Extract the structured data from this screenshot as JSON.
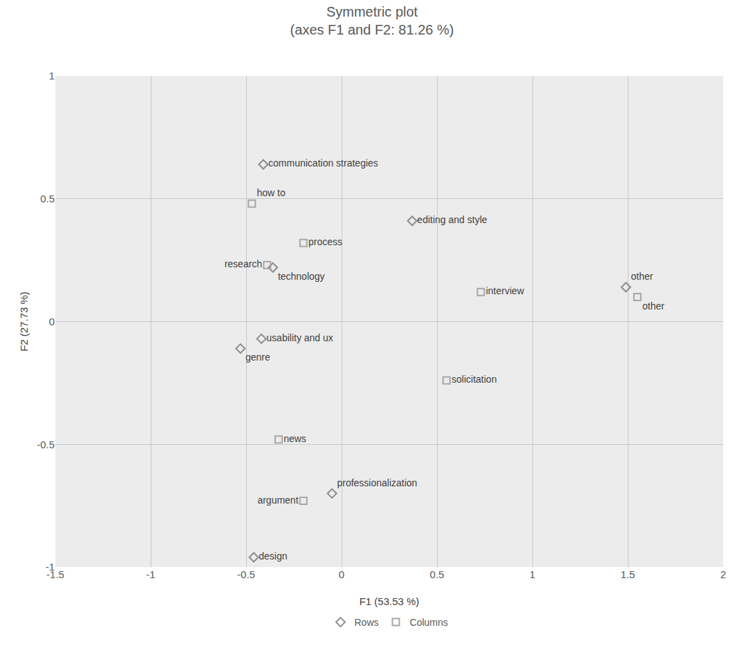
{
  "chart_data": {
    "type": "scatter",
    "title": "Symmetric plot",
    "subtitle": "(axes F1 and F2: 81.26 %)",
    "x_label": "F1 (53.53 %)",
    "y_label": "F2 (27.73 %)",
    "xlim": [
      -1.5,
      2
    ],
    "xticks": [
      -1.5,
      -1,
      -0.5,
      0,
      0.5,
      1,
      1.5,
      2
    ],
    "ylim": [
      -1,
      1
    ],
    "yticks": [
      -1,
      -0.5,
      0,
      0.5,
      1
    ],
    "grid": true,
    "legend": "bottom",
    "series": [
      {
        "name": "Rows",
        "color": "#8c8c8c",
        "marker": "diamond",
        "labels": [
          "communication strategies",
          "editing and style",
          "technology",
          "usability and ux",
          "genre",
          "professionalization",
          "design",
          "other"
        ],
        "x": [
          -0.41,
          0.37,
          -0.36,
          -0.42,
          -0.53,
          -0.05,
          -0.46,
          1.49
        ],
        "values": [
          0.64,
          0.41,
          0.22,
          -0.07,
          -0.11,
          -0.7,
          -0.96,
          0.14
        ]
      },
      {
        "name": "Columns",
        "color": "#a6a6a6",
        "marker": "square",
        "labels": [
          "how to",
          "process",
          "research",
          "interview",
          "other",
          "solicitation",
          "news",
          "argument"
        ],
        "x": [
          -0.47,
          -0.2,
          -0.39,
          0.73,
          1.55,
          0.55,
          -0.33,
          -0.2
        ],
        "values": [
          0.48,
          0.32,
          0.23,
          0.12,
          0.1,
          -0.24,
          -0.48,
          -0.73
        ]
      }
    ]
  }
}
